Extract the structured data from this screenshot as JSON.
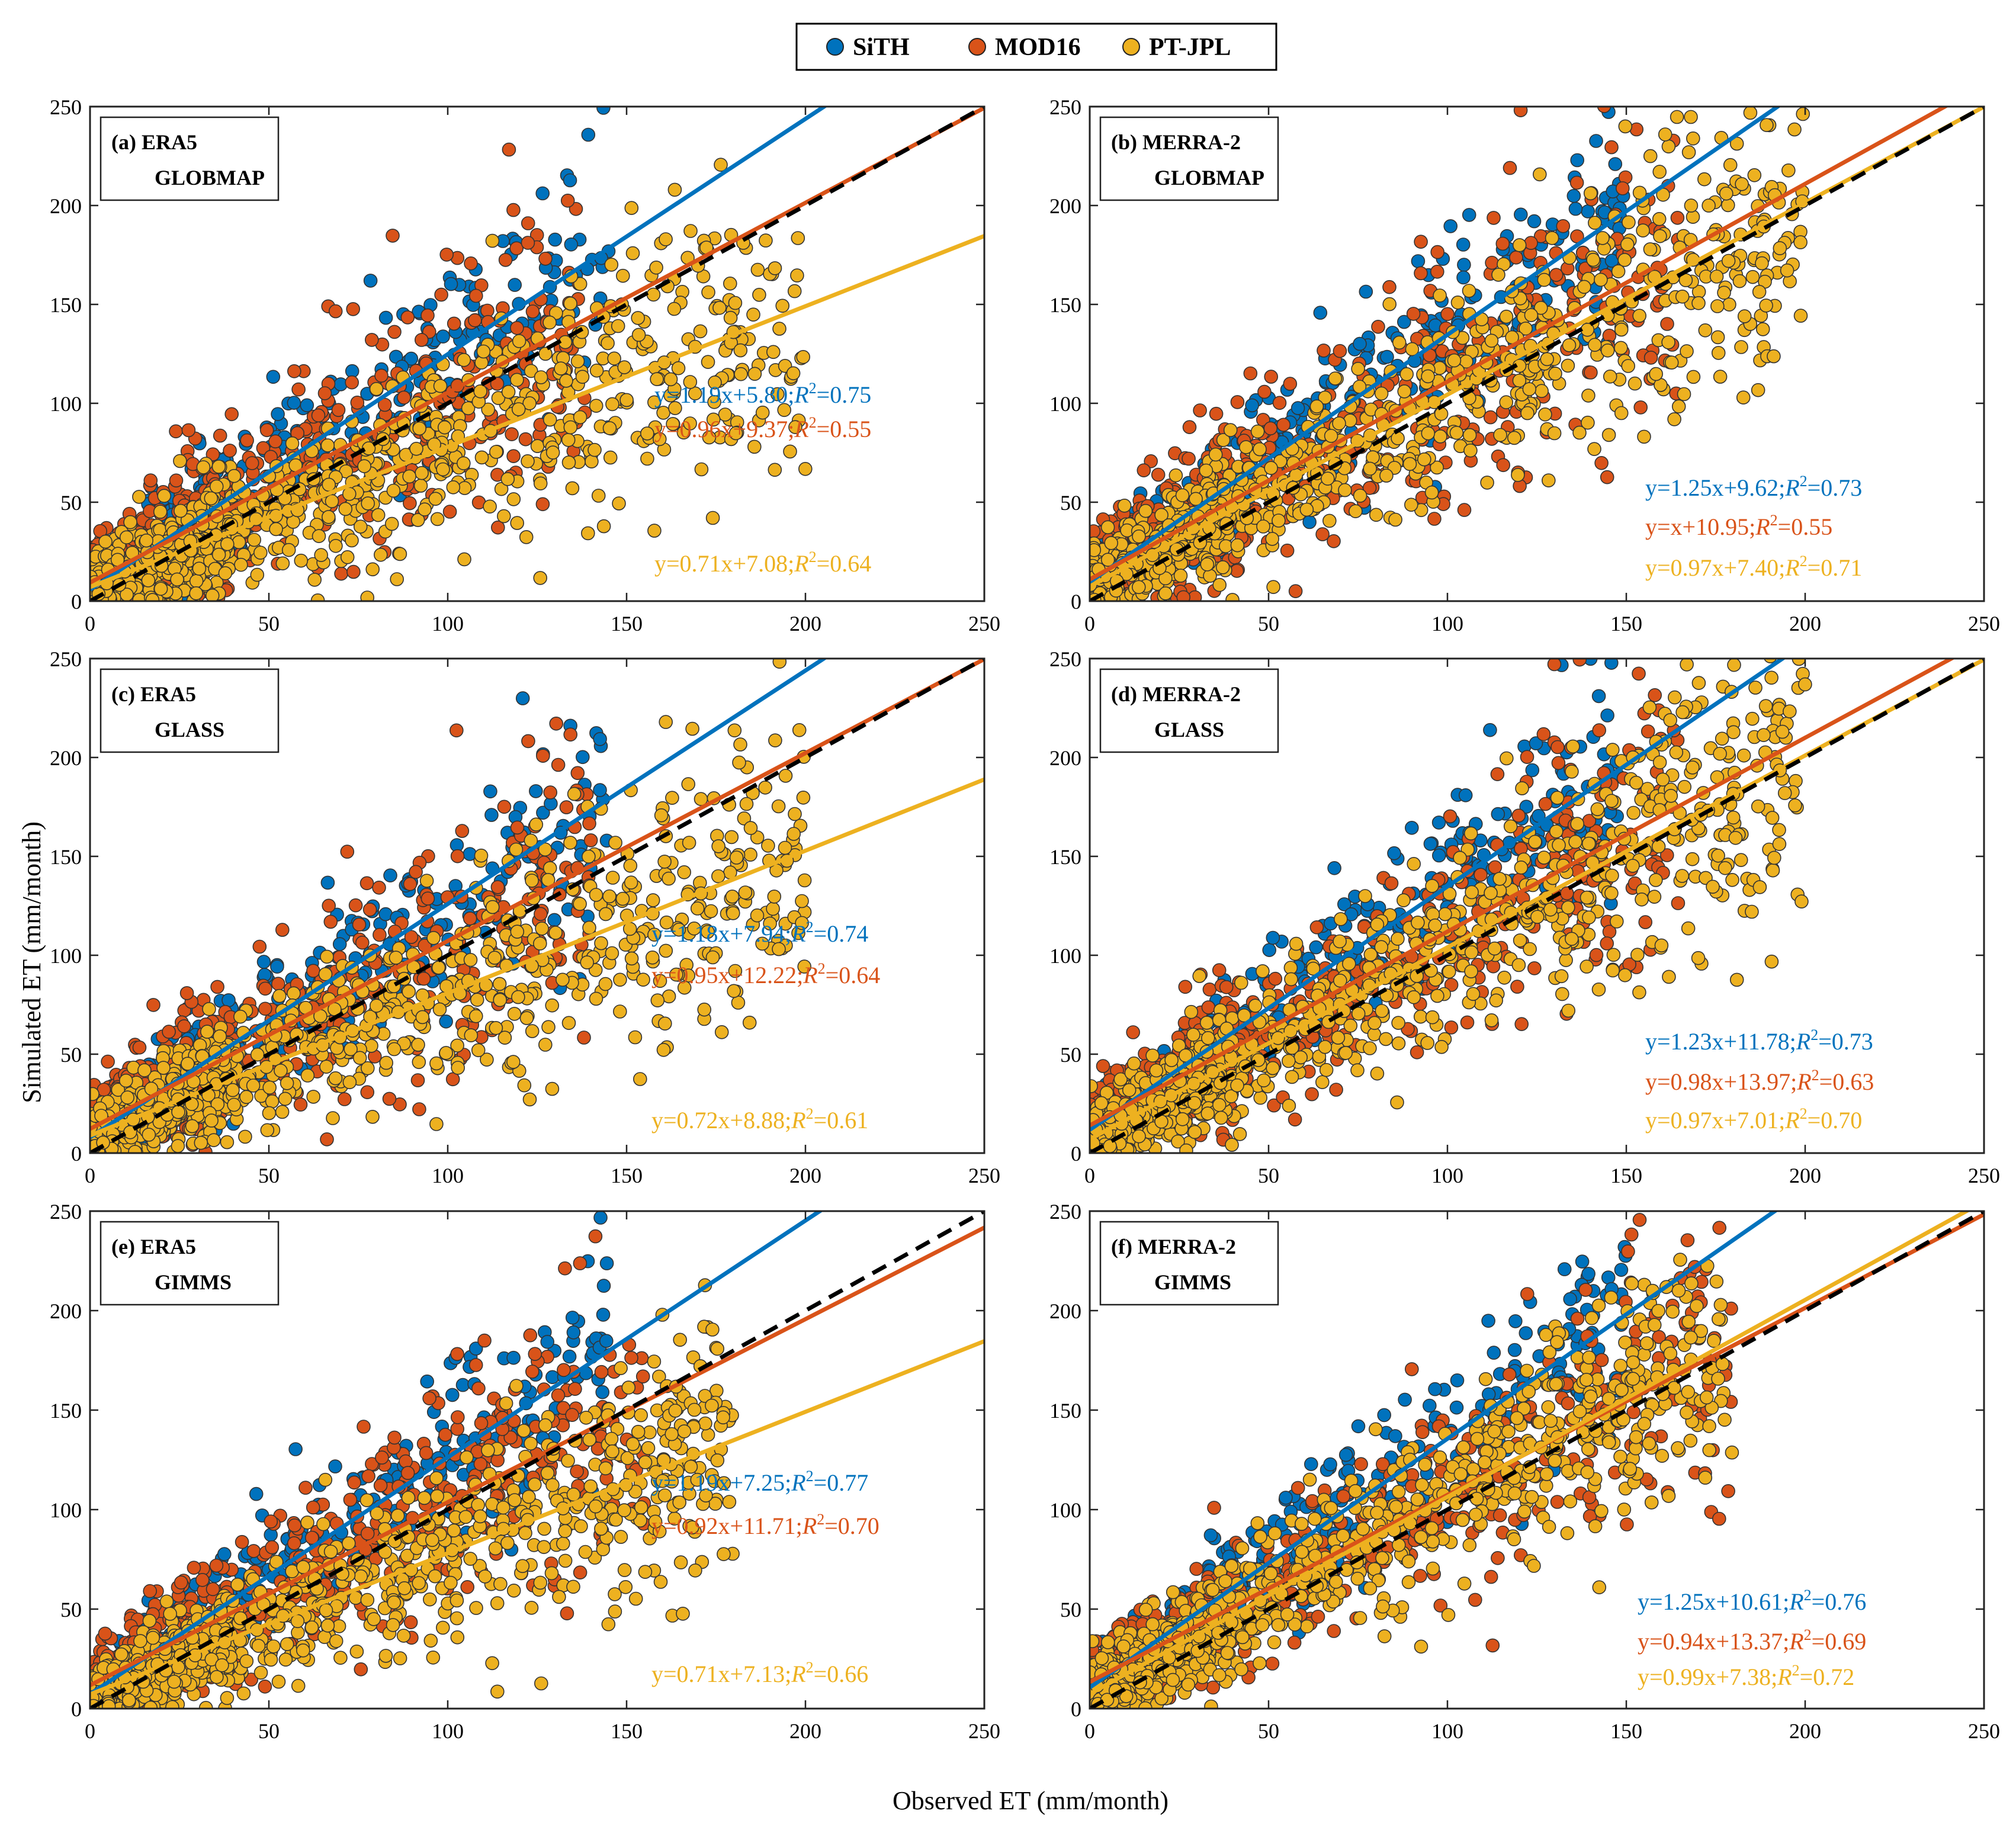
{
  "figure": {
    "ylabel": "Simulated ET (mm/month)",
    "xlabel": "Observed ET (mm/month)",
    "legend": [
      {
        "name": "SiTH",
        "color": "#0072BD"
      },
      {
        "name": "MOD16",
        "color": "#D95319"
      },
      {
        "name": "PT-JPL",
        "color": "#EDB120"
      }
    ],
    "colors": {
      "sith": "#0072BD",
      "mod16": "#D95319",
      "ptjpl": "#EDB120",
      "one_to_one": "#000000"
    }
  },
  "chart_data": [
    {
      "type": "scatter",
      "panel": "(a)",
      "forcing": "ERA5",
      "lai": "GLOBMAP",
      "xlim": [
        0,
        250
      ],
      "ylim": [
        0,
        250
      ],
      "xticks": [
        0,
        50,
        100,
        150,
        200,
        250
      ],
      "yticks": [
        0,
        50,
        100,
        150,
        200,
        250
      ],
      "series": [
        {
          "name": "SiTH",
          "slope": 1.19,
          "intercept": 5.8,
          "eq": "y=1.19x+5.80;",
          "r2": "=0.75",
          "x_max": 145,
          "spread": 22
        },
        {
          "name": "MOD16",
          "slope": 0.96,
          "intercept": 9.37,
          "eq": "y=0.96x+9.37;",
          "r2": "=0.55",
          "x_max": 140,
          "spread": 32
        },
        {
          "name": "PT-JPL",
          "slope": 0.71,
          "intercept": 7.08,
          "eq": "y=0.71x+7.08;",
          "r2": "=0.64",
          "x_max": 200,
          "spread": 22
        }
      ]
    },
    {
      "type": "scatter",
      "panel": "(b)",
      "forcing": "MERRA-2",
      "lai": "GLOBMAP",
      "xlim": [
        0,
        250
      ],
      "ylim": [
        0,
        250
      ],
      "xticks": [
        0,
        50,
        100,
        150,
        200,
        250
      ],
      "yticks": [
        0,
        50,
        100,
        150,
        200,
        250
      ],
      "series": [
        {
          "name": "SiTH",
          "slope": 1.25,
          "intercept": 9.62,
          "eq": "y=1.25x+9.62;",
          "r2": "=0.73",
          "x_max": 150,
          "spread": 22
        },
        {
          "name": "MOD16",
          "slope": 1.0,
          "intercept": 10.95,
          "eq": "y=x+10.95;",
          "r2": "=0.55",
          "x_max": 165,
          "spread": 32
        },
        {
          "name": "PT-JPL",
          "slope": 0.97,
          "intercept": 7.4,
          "eq": "y=0.97x+7.40;",
          "r2": "=0.71",
          "x_max": 200,
          "spread": 22
        }
      ]
    },
    {
      "type": "scatter",
      "panel": "(c)",
      "forcing": "ERA5",
      "lai": "GLASS",
      "xlim": [
        0,
        250
      ],
      "ylim": [
        0,
        250
      ],
      "xticks": [
        0,
        50,
        100,
        150,
        200,
        250
      ],
      "yticks": [
        0,
        50,
        100,
        150,
        200,
        250
      ],
      "series": [
        {
          "name": "SiTH",
          "slope": 1.18,
          "intercept": 7.94,
          "eq": "y=1.18x+7.94;",
          "r2": "=0.74",
          "x_max": 145,
          "spread": 22
        },
        {
          "name": "MOD16",
          "slope": 0.95,
          "intercept": 12.22,
          "eq": "y=0.95x+12.22;",
          "r2": "=0.64",
          "x_max": 140,
          "spread": 28
        },
        {
          "name": "PT-JPL",
          "slope": 0.72,
          "intercept": 8.88,
          "eq": "y=0.72x+8.88;",
          "r2": "=0.61",
          "x_max": 200,
          "spread": 22
        }
      ]
    },
    {
      "type": "scatter",
      "panel": "(d)",
      "forcing": "MERRA-2",
      "lai": "GLASS",
      "xlim": [
        0,
        250
      ],
      "ylim": [
        0,
        250
      ],
      "xticks": [
        0,
        50,
        100,
        150,
        200,
        250
      ],
      "yticks": [
        0,
        50,
        100,
        150,
        200,
        250
      ],
      "series": [
        {
          "name": "SiTH",
          "slope": 1.23,
          "intercept": 11.78,
          "eq": "y=1.23x+11.78;",
          "r2": "=0.73",
          "x_max": 150,
          "spread": 22
        },
        {
          "name": "MOD16",
          "slope": 0.98,
          "intercept": 13.97,
          "eq": "y=0.98x+13.97;",
          "r2": "=0.63",
          "x_max": 165,
          "spread": 28
        },
        {
          "name": "PT-JPL",
          "slope": 0.97,
          "intercept": 7.01,
          "eq": "y=0.97x+7.01;",
          "r2": "=0.70",
          "x_max": 200,
          "spread": 22
        }
      ]
    },
    {
      "type": "scatter",
      "panel": "(e)",
      "forcing": "ERA5",
      "lai": "GIMMS",
      "xlim": [
        0,
        250
      ],
      "ylim": [
        0,
        250
      ],
      "xticks": [
        0,
        50,
        100,
        150,
        200,
        250
      ],
      "yticks": [
        0,
        50,
        100,
        150,
        200,
        250
      ],
      "series": [
        {
          "name": "SiTH",
          "slope": 1.19,
          "intercept": 7.25,
          "eq": "y=1.19x+7.25;",
          "r2": "=0.77",
          "x_max": 145,
          "spread": 20
        },
        {
          "name": "MOD16",
          "slope": 0.92,
          "intercept": 11.71,
          "eq": "y=0.92x+11.71;",
          "r2": "=0.70",
          "x_max": 155,
          "spread": 26
        },
        {
          "name": "PT-JPL",
          "slope": 0.71,
          "intercept": 7.13,
          "eq": "y=0.71x+7.13;",
          "r2": "=0.66",
          "x_max": 180,
          "spread": 20
        }
      ]
    },
    {
      "type": "scatter",
      "panel": "(f)",
      "forcing": "MERRA-2",
      "lai": "GIMMS",
      "xlim": [
        0,
        250
      ],
      "ylim": [
        0,
        250
      ],
      "xticks": [
        0,
        50,
        100,
        150,
        200,
        250
      ],
      "yticks": [
        0,
        50,
        100,
        150,
        200,
        250
      ],
      "series": [
        {
          "name": "SiTH",
          "slope": 1.25,
          "intercept": 10.61,
          "eq": "y=1.25x+10.61;",
          "r2": "=0.76",
          "x_max": 150,
          "spread": 20
        },
        {
          "name": "MOD16",
          "slope": 0.94,
          "intercept": 13.37,
          "eq": "y=0.94x+13.37;",
          "r2": "=0.69",
          "x_max": 180,
          "spread": 24
        },
        {
          "name": "PT-JPL",
          "slope": 0.99,
          "intercept": 7.38,
          "eq": "y=0.99x+7.38;",
          "r2": "=0.72",
          "x_max": 180,
          "spread": 20
        }
      ]
    }
  ]
}
